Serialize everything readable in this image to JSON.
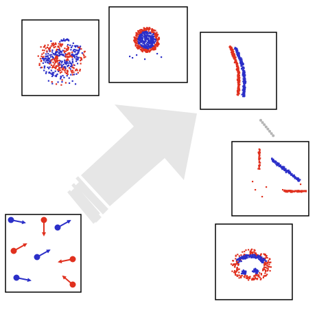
{
  "colors": {
    "red": "#e0301e",
    "blue": "#2b2fc8",
    "frame": "#000000",
    "arrow": "#e6e6e6",
    "dots": "#b5b5b5",
    "panel_bg": "#ffffff"
  },
  "icons": [
    "big-arrow-icon",
    "particle-dot-icon",
    "velocity-arrow-icon",
    "dotted-connector-icon"
  ],
  "particles": [
    {
      "color": "blue",
      "dir": "right"
    },
    {
      "color": "red",
      "dir": "down"
    },
    {
      "color": "blue",
      "dir": "up-right"
    },
    {
      "color": "red",
      "dir": "up-right"
    },
    {
      "color": "blue",
      "dir": "up-right"
    },
    {
      "color": "red",
      "dir": "left"
    },
    {
      "color": "blue",
      "dir": "right"
    },
    {
      "color": "red",
      "dir": "up-left"
    }
  ],
  "panels": [
    {
      "pattern": "swirl"
    },
    {
      "pattern": "ring-core"
    },
    {
      "pattern": "diagonal-band"
    },
    {
      "pattern": "separated-lines"
    },
    {
      "pattern": "ring-scatter"
    }
  ]
}
